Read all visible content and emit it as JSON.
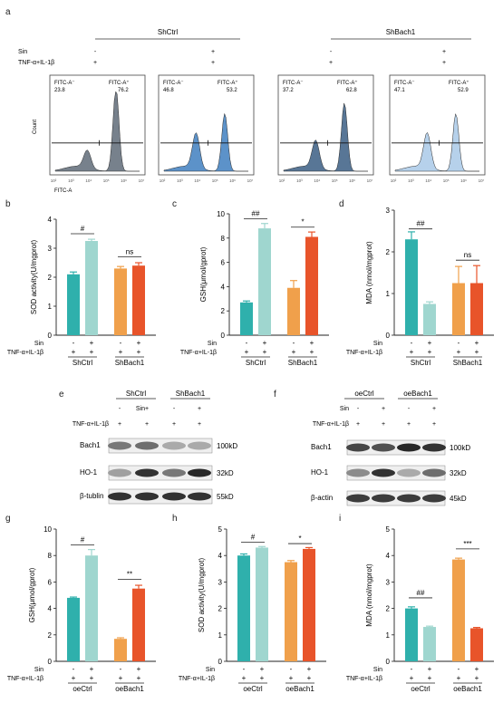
{
  "panel_letters": {
    "a": "a",
    "b": "b",
    "c": "c",
    "d": "d",
    "e": "e",
    "f": "f",
    "g": "g",
    "h": "h",
    "i": "i"
  },
  "panel_a": {
    "group_left": "ShCtrl",
    "group_right": "ShBach1",
    "row_sin": "Sin",
    "row_tnf": "TNF-α+IL-1β",
    "sin_signs": [
      "-",
      "+",
      "-",
      "+"
    ],
    "tnf_signs": [
      "+",
      "+",
      "+",
      "+"
    ],
    "ylabel": "Count",
    "xlabel": "FITC-A",
    "gate_neg_label": "FITC-A⁻",
    "gate_pos_label": "FITC-A⁺",
    "histograms": [
      {
        "neg": "23.8",
        "pos": "76.2",
        "color": "#5f6b78"
      },
      {
        "neg": "46.8",
        "pos": "53.2",
        "color": "#3f7fbf"
      },
      {
        "neg": "37.2",
        "pos": "62.8",
        "color": "#3b5e84"
      },
      {
        "neg": "47.1",
        "pos": "52.9",
        "color": "#a9c9e8"
      }
    ],
    "x_ticks": [
      "10²",
      "10³",
      "10⁴",
      "10⁵",
      "10⁶",
      "10⁷"
    ]
  },
  "chart_data": [
    {
      "panel": "b",
      "type": "bar",
      "ylabel": "SOD activity(U/mgprot)",
      "ylim": [
        0,
        4
      ],
      "yticks": [
        "0",
        "1",
        "2",
        "3",
        "4"
      ],
      "categories": [
        "ShCtrl -",
        "ShCtrl +",
        "ShBach1 -",
        "ShBach1 +"
      ],
      "values": [
        2.1,
        3.25,
        2.3,
        2.4
      ],
      "errors": [
        0.08,
        0.06,
        0.07,
        0.1
      ],
      "colors": [
        "#2fb0ac",
        "#9fd6cf",
        "#f0a04b",
        "#e8542a"
      ],
      "sin": [
        "-",
        "+",
        "-",
        "+"
      ],
      "tnf": [
        "+",
        "+",
        "+",
        "+"
      ],
      "groups": [
        "ShCtrl",
        "ShBach1"
      ],
      "sig": [
        {
          "label": "#",
          "a": 0,
          "b": 1,
          "y": 3.5
        },
        {
          "label": "ns",
          "a": 2,
          "b": 3,
          "y": 2.7
        }
      ]
    },
    {
      "panel": "c",
      "type": "bar",
      "ylabel": "GSH(μmol/gprot)",
      "ylim": [
        0,
        10
      ],
      "yticks": [
        "0",
        "2",
        "4",
        "6",
        "8",
        "10"
      ],
      "categories": [
        "ShCtrl -",
        "ShCtrl +",
        "ShBach1 -",
        "ShBach1 +"
      ],
      "values": [
        2.7,
        8.8,
        3.9,
        8.1
      ],
      "errors": [
        0.12,
        0.4,
        0.6,
        0.4
      ],
      "colors": [
        "#2fb0ac",
        "#9fd6cf",
        "#f0a04b",
        "#e8542a"
      ],
      "sin": [
        "-",
        "+",
        "-",
        "+"
      ],
      "tnf": [
        "+",
        "+",
        "+",
        "+"
      ],
      "groups": [
        "ShCtrl",
        "ShBach1"
      ],
      "sig": [
        {
          "label": "##",
          "a": 0,
          "b": 1,
          "y": 9.6
        },
        {
          "label": "*",
          "a": 2,
          "b": 3,
          "y": 8.9
        }
      ]
    },
    {
      "panel": "d",
      "type": "bar",
      "ylabel": "MDA (nmol/mgprot)",
      "ylim": [
        0,
        3
      ],
      "yticks": [
        "0",
        "1",
        "2",
        "3"
      ],
      "categories": [
        "ShCtrl -",
        "ShCtrl +",
        "ShBach1 -",
        "ShBach1 +"
      ],
      "values": [
        2.3,
        0.75,
        1.25,
        1.25
      ],
      "errors": [
        0.18,
        0.05,
        0.4,
        0.42
      ],
      "colors": [
        "#2fb0ac",
        "#9fd6cf",
        "#f0a04b",
        "#e8542a"
      ],
      "sin": [
        "-",
        "+",
        "-",
        "+"
      ],
      "tnf": [
        "+",
        "+",
        "+",
        "+"
      ],
      "groups": [
        "ShCtrl",
        "ShBach1"
      ],
      "sig": [
        {
          "label": "##",
          "a": 0,
          "b": 1,
          "y": 2.55
        },
        {
          "label": "ns",
          "a": 2,
          "b": 3,
          "y": 1.8
        }
      ]
    },
    {
      "panel": "g",
      "type": "bar",
      "ylabel": "GSH(μmol/gprot)",
      "ylim": [
        0,
        10
      ],
      "yticks": [
        "0",
        "2",
        "4",
        "6",
        "8",
        "10"
      ],
      "categories": [
        "oeCtrl -",
        "oeCtrl +",
        "oeBach1 -",
        "oeBach1 +"
      ],
      "values": [
        4.8,
        8.0,
        1.7,
        5.5
      ],
      "errors": [
        0.06,
        0.45,
        0.08,
        0.25
      ],
      "colors": [
        "#2fb0ac",
        "#9fd6cf",
        "#f0a04b",
        "#e8542a"
      ],
      "sin": [
        "-",
        "+",
        "-",
        "+"
      ],
      "tnf": [
        "+",
        "+",
        "+",
        "+"
      ],
      "groups": [
        "oeCtrl",
        "oeBach1"
      ],
      "sig": [
        {
          "label": "#",
          "a": 0,
          "b": 1,
          "y": 8.8
        },
        {
          "label": "**",
          "a": 2,
          "b": 3,
          "y": 6.2
        }
      ]
    },
    {
      "panel": "h",
      "type": "bar",
      "ylabel": "SOD activity(U/mgprot)",
      "ylim": [
        0,
        5
      ],
      "yticks": [
        "0",
        "1",
        "2",
        "3",
        "4",
        "5"
      ],
      "categories": [
        "oeCtrl -",
        "oeCtrl +",
        "oeBach1 -",
        "oeBach1 +"
      ],
      "values": [
        4.0,
        4.3,
        3.75,
        4.25
      ],
      "errors": [
        0.06,
        0.04,
        0.06,
        0.05
      ],
      "colors": [
        "#2fb0ac",
        "#9fd6cf",
        "#f0a04b",
        "#e8542a"
      ],
      "sin": [
        "-",
        "+",
        "-",
        "+"
      ],
      "tnf": [
        "+",
        "+",
        "+",
        "+"
      ],
      "groups": [
        "oeCtrl",
        "oeBach1"
      ],
      "sig": [
        {
          "label": "#",
          "a": 0,
          "b": 1,
          "y": 4.5
        },
        {
          "label": "*",
          "a": 2,
          "b": 3,
          "y": 4.45
        }
      ]
    },
    {
      "panel": "i",
      "type": "bar",
      "ylabel": "MDA (nmol/mgprot)",
      "ylim": [
        0,
        5
      ],
      "yticks": [
        "0",
        "1",
        "2",
        "3",
        "4",
        "5"
      ],
      "categories": [
        "oeCtrl -",
        "oeCtrl +",
        "oeBach1 -",
        "oeBach1 +"
      ],
      "values": [
        2.0,
        1.3,
        3.85,
        1.25
      ],
      "errors": [
        0.06,
        0.03,
        0.05,
        0.03
      ],
      "colors": [
        "#2fb0ac",
        "#9fd6cf",
        "#f0a04b",
        "#e8542a"
      ],
      "sin": [
        "-",
        "+",
        "-",
        "+"
      ],
      "tnf": [
        "+",
        "+",
        "+",
        "+"
      ],
      "groups": [
        "oeCtrl",
        "oeBach1"
      ],
      "sig": [
        {
          "label": "##",
          "a": 0,
          "b": 1,
          "y": 2.4
        },
        {
          "label": "***",
          "a": 2,
          "b": 3,
          "y": 4.25
        }
      ]
    }
  ],
  "row_labels": {
    "sin": "Sin",
    "tnf": "TNF-α+IL-1β"
  },
  "panel_e": {
    "group_left": "ShCtrl",
    "group_right": "ShBach1",
    "sin_label": "Sin",
    "tnf_label": "TNF-α+IL-1β",
    "sin_signs": [
      "-",
      "+",
      "-",
      "+"
    ],
    "tnf_signs": [
      "+",
      "+",
      "+",
      "+"
    ],
    "rows": [
      {
        "name": "Bach1",
        "kd": "100kD",
        "intensity": [
          0.55,
          0.6,
          0.3,
          0.3
        ]
      },
      {
        "name": "HO-1",
        "kd": "32kD",
        "intensity": [
          0.35,
          0.9,
          0.55,
          0.95
        ]
      },
      {
        "name": "β-tublin",
        "kd": "55kD",
        "intensity": [
          0.9,
          0.9,
          0.9,
          0.9
        ]
      }
    ]
  },
  "panel_f": {
    "group_left": "oeCtrl",
    "group_right": "oeBach1",
    "sin_label": "Sin",
    "tnf_label": "TNF-α+IL-1β",
    "sin_signs": [
      "-",
      "+",
      "-",
      "+"
    ],
    "tnf_signs": [
      "+",
      "+",
      "+",
      "+"
    ],
    "rows": [
      {
        "name": "Bach1",
        "kd": "100kD",
        "intensity": [
          0.8,
          0.75,
          0.95,
          0.9
        ]
      },
      {
        "name": "HO-1",
        "kd": "32kD",
        "intensity": [
          0.45,
          0.9,
          0.3,
          0.6
        ]
      },
      {
        "name": "β-actin",
        "kd": "45kD",
        "intensity": [
          0.85,
          0.85,
          0.85,
          0.85
        ]
      }
    ]
  }
}
